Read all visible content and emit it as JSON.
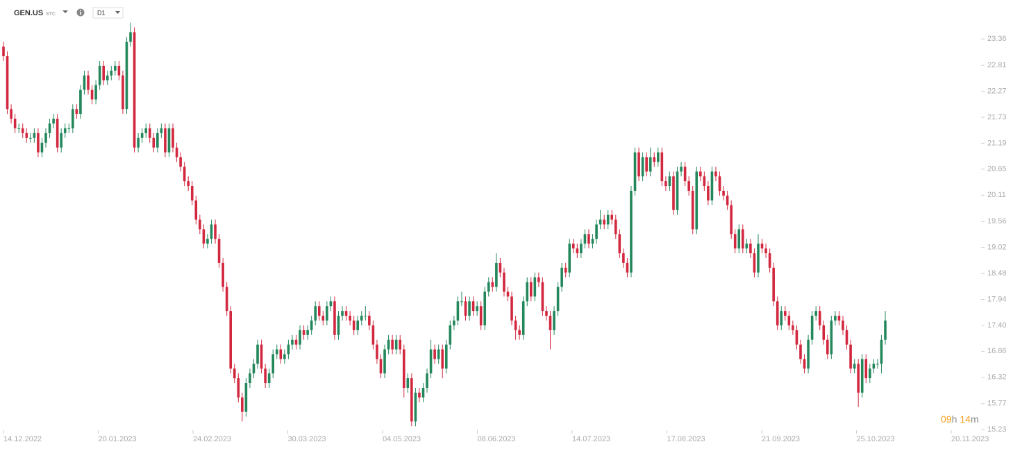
{
  "header": {
    "symbol": "GEN.US",
    "symbol_type": "STC",
    "timeframe": "D1",
    "countdown": [
      "09",
      "h",
      "14",
      "m"
    ]
  },
  "chart_data": {
    "type": "candlestick",
    "up_color": "#23875b",
    "down_color": "#d2283f",
    "ylim": [
      15.19,
      24.17
    ],
    "yticks": [
      23.36,
      22.81,
      22.27,
      21.73,
      21.19,
      20.65,
      20.11,
      19.56,
      19.02,
      18.48,
      17.94,
      {
        "value": 17.4,
        "label": "17.40"
      },
      16.86,
      16.32,
      15.77,
      15.23
    ],
    "xtick_labels": [
      "14.12.2022",
      "20.01.2023",
      "24.02.2023",
      "30.03.2023",
      "04.05.2023",
      "08.06.2023",
      "14.07.2023",
      "17.08.2023",
      "21.09.2023",
      "25.10.2023",
      "20.11.2023"
    ],
    "open": [
      23.2,
      23.0,
      21.9,
      21.7,
      21.5,
      21.5,
      21.4,
      21.3,
      21.3,
      21.4,
      21.0,
      21.2,
      21.4,
      21.6,
      21.7,
      21.1,
      21.4,
      21.5,
      21.5,
      21.9,
      21.8,
      22.3,
      22.6,
      22.3,
      22.1,
      22.4,
      22.8,
      22.5,
      22.6,
      22.7,
      22.8,
      22.6,
      21.9,
      23.3,
      23.5,
      21.1,
      21.3,
      21.4,
      21.5,
      21.3,
      21.1,
      21.4,
      21.5,
      21.0,
      21.5,
      21.1,
      20.9,
      20.7,
      20.4,
      20.3,
      20.0,
      19.6,
      19.4,
      19.1,
      19.2,
      19.5,
      19.2,
      18.7,
      18.2,
      17.7,
      16.5,
      16.3,
      15.9,
      15.6,
      16.2,
      16.4,
      16.6,
      17.0,
      16.5,
      16.2,
      16.4,
      16.8,
      16.9,
      16.7,
      16.8,
      17.0,
      17.1,
      17.0,
      17.3,
      17.2,
      17.3,
      17.5,
      17.8,
      17.6,
      17.5,
      17.8,
      17.9,
      17.2,
      17.6,
      17.7,
      17.6,
      17.5,
      17.3,
      17.5,
      17.6,
      17.6,
      17.4,
      17.0,
      16.7,
      16.4,
      16.9,
      17.1,
      16.9,
      17.1,
      16.9,
      16.1,
      16.3,
      15.4,
      16.0,
      15.9,
      16.1,
      16.4,
      16.9,
      16.7,
      16.9,
      16.5,
      17.0,
      17.4,
      17.5,
      17.9,
      17.9,
      17.6,
      17.9,
      17.7,
      17.8,
      17.4,
      18.1,
      18.3,
      18.2,
      18.7,
      18.5,
      18.1,
      18.0,
      17.5,
      17.3,
      17.2,
      17.9,
      18.3,
      18.0,
      18.4,
      18.3,
      17.7,
      17.6,
      17.3,
      17.7,
      18.2,
      18.6,
      18.5,
      19.1,
      19.0,
      18.9,
      19.1,
      19.3,
      19.1,
      19.2,
      19.5,
      19.6,
      19.5,
      19.7,
      19.6,
      19.3,
      18.9,
      18.7,
      18.5,
      20.2,
      21.0,
      20.5,
      20.9,
      20.6,
      20.9,
      20.8,
      21.0,
      20.4,
      20.3,
      20.5,
      19.8,
      20.6,
      20.7,
      20.4,
      20.2,
      19.4,
      20.6,
      20.5,
      20.3,
      20.0,
      20.6,
      20.5,
      20.2,
      20.1,
      19.9,
      19.3,
      19.0,
      19.4,
      19.0,
      19.1,
      18.9,
      18.5,
      19.1,
      19.0,
      18.9,
      18.6,
      17.9,
      17.4,
      17.7,
      17.6,
      17.4,
      17.3,
      17.0,
      16.7,
      16.5,
      17.1,
      17.6,
      17.7,
      17.4,
      17.1,
      16.8,
      17.5,
      17.6,
      17.5,
      17.3,
      17.0,
      16.5,
      16.6,
      16.0,
      16.7,
      16.3,
      16.5,
      16.6,
      16.6,
      17.1
    ],
    "high": [
      23.3,
      23.1,
      22.0,
      21.8,
      21.6,
      21.6,
      21.5,
      21.4,
      21.5,
      21.5,
      21.3,
      21.5,
      21.7,
      21.8,
      21.8,
      21.5,
      21.6,
      21.6,
      22.0,
      22.0,
      22.4,
      22.7,
      22.7,
      22.4,
      22.5,
      22.9,
      22.9,
      22.7,
      22.8,
      22.9,
      22.9,
      22.7,
      23.4,
      23.7,
      23.6,
      21.4,
      21.5,
      21.6,
      21.6,
      21.4,
      21.5,
      21.6,
      21.6,
      21.6,
      21.6,
      21.2,
      21.0,
      20.8,
      20.5,
      20.4,
      20.1,
      19.7,
      19.5,
      19.3,
      19.6,
      19.6,
      19.3,
      18.8,
      18.3,
      17.8,
      16.6,
      16.4,
      16.0,
      16.3,
      16.5,
      16.7,
      17.1,
      17.1,
      16.6,
      16.5,
      16.9,
      17.0,
      17.0,
      16.9,
      17.1,
      17.2,
      17.2,
      17.4,
      17.4,
      17.4,
      17.6,
      17.9,
      17.9,
      17.7,
      17.9,
      18.0,
      18.0,
      17.7,
      17.8,
      17.8,
      17.7,
      17.6,
      17.6,
      17.7,
      17.8,
      17.7,
      17.5,
      17.1,
      16.8,
      17.0,
      17.2,
      17.2,
      17.2,
      17.2,
      17.0,
      16.4,
      16.4,
      16.1,
      16.1,
      16.2,
      16.5,
      17.1,
      17.0,
      17.0,
      17.0,
      17.1,
      17.5,
      17.6,
      18.0,
      18.1,
      18.0,
      18.0,
      18.0,
      17.9,
      17.9,
      18.2,
      18.4,
      18.4,
      18.9,
      18.8,
      18.6,
      18.2,
      18.1,
      17.6,
      17.4,
      18.0,
      18.4,
      18.4,
      18.5,
      18.5,
      18.4,
      17.8,
      17.7,
      17.8,
      18.3,
      18.7,
      18.7,
      19.2,
      19.2,
      19.1,
      19.2,
      19.4,
      19.4,
      19.3,
      19.6,
      19.8,
      19.7,
      19.8,
      19.8,
      19.7,
      19.4,
      19.0,
      18.8,
      20.3,
      21.1,
      21.1,
      21.0,
      21.0,
      21.1,
      21.0,
      21.1,
      21.1,
      20.5,
      20.6,
      20.6,
      20.7,
      20.8,
      20.8,
      20.5,
      20.3,
      20.7,
      20.7,
      20.6,
      20.4,
      20.7,
      20.7,
      20.6,
      20.3,
      20.2,
      20.0,
      19.4,
      19.5,
      19.5,
      19.2,
      19.2,
      19.0,
      19.3,
      19.2,
      19.1,
      19.0,
      18.7,
      18.0,
      17.8,
      17.8,
      17.7,
      17.5,
      17.4,
      17.1,
      16.8,
      17.2,
      17.7,
      17.8,
      17.8,
      17.5,
      17.2,
      17.6,
      17.7,
      17.7,
      17.6,
      17.4,
      17.1,
      16.7,
      16.7,
      16.8,
      16.8,
      16.6,
      16.7,
      16.7,
      17.2,
      17.7
    ],
    "low": [
      22.9,
      21.8,
      21.6,
      21.4,
      21.4,
      21.3,
      21.2,
      21.2,
      21.2,
      20.9,
      20.9,
      21.1,
      21.3,
      21.5,
      21.0,
      21.0,
      21.3,
      21.4,
      21.4,
      21.7,
      21.7,
      22.2,
      22.2,
      22.0,
      22.0,
      22.3,
      22.4,
      22.4,
      22.5,
      22.6,
      22.5,
      21.8,
      21.8,
      23.2,
      21.0,
      21.0,
      21.2,
      21.3,
      21.2,
      21.0,
      21.0,
      21.3,
      20.9,
      20.9,
      21.0,
      20.8,
      20.6,
      20.3,
      20.2,
      19.9,
      19.5,
      19.3,
      19.0,
      19.0,
      19.1,
      19.1,
      18.6,
      18.1,
      17.6,
      16.4,
      16.2,
      15.8,
      15.4,
      15.5,
      16.1,
      16.3,
      16.5,
      16.4,
      16.1,
      16.1,
      16.3,
      16.7,
      16.6,
      16.6,
      16.7,
      16.9,
      16.9,
      16.9,
      17.1,
      17.1,
      17.2,
      17.4,
      17.5,
      17.4,
      17.4,
      17.7,
      17.1,
      17.1,
      17.5,
      17.5,
      17.4,
      17.2,
      17.2,
      17.4,
      17.5,
      17.3,
      16.9,
      16.6,
      16.3,
      16.3,
      16.8,
      16.8,
      16.8,
      16.8,
      15.9,
      16.0,
      15.3,
      15.3,
      15.8,
      15.8,
      16.0,
      16.3,
      16.6,
      16.6,
      16.3,
      16.4,
      16.9,
      17.3,
      17.4,
      17.8,
      17.5,
      17.5,
      17.6,
      17.6,
      17.3,
      17.3,
      18.0,
      18.1,
      18.1,
      18.4,
      18.0,
      17.9,
      17.4,
      17.1,
      17.1,
      17.1,
      17.8,
      17.9,
      17.9,
      18.2,
      17.6,
      17.5,
      16.9,
      17.2,
      17.6,
      18.1,
      18.4,
      18.4,
      18.9,
      18.8,
      18.8,
      19.0,
      19.0,
      19.0,
      19.1,
      19.4,
      19.4,
      19.4,
      19.5,
      19.2,
      18.8,
      18.6,
      18.4,
      18.4,
      20.1,
      20.4,
      20.4,
      20.5,
      20.5,
      20.7,
      20.7,
      20.3,
      20.2,
      20.2,
      19.7,
      19.7,
      20.5,
      20.3,
      20.1,
      19.3,
      19.3,
      20.4,
      20.2,
      19.9,
      19.9,
      20.4,
      20.1,
      20.0,
      19.8,
      19.2,
      18.9,
      18.9,
      18.9,
      18.9,
      18.8,
      18.4,
      18.4,
      18.9,
      18.8,
      18.5,
      17.8,
      17.3,
      17.3,
      17.5,
      17.3,
      17.2,
      16.9,
      16.6,
      16.4,
      16.4,
      17.0,
      17.5,
      17.3,
      17.0,
      16.7,
      16.7,
      17.4,
      17.4,
      17.2,
      16.9,
      16.4,
      16.4,
      15.7,
      15.9,
      16.2,
      16.2,
      16.4,
      16.5,
      16.4,
      17.0
    ],
    "close": [
      23.0,
      21.9,
      21.7,
      21.5,
      21.5,
      21.4,
      21.3,
      21.3,
      21.4,
      21.0,
      21.2,
      21.4,
      21.6,
      21.7,
      21.1,
      21.4,
      21.5,
      21.5,
      21.9,
      21.8,
      22.3,
      22.6,
      22.3,
      22.1,
      22.4,
      22.8,
      22.5,
      22.6,
      22.7,
      22.8,
      22.6,
      21.9,
      23.3,
      23.5,
      21.1,
      21.3,
      21.4,
      21.5,
      21.3,
      21.1,
      21.4,
      21.5,
      21.0,
      21.5,
      21.1,
      20.9,
      20.7,
      20.4,
      20.3,
      20.0,
      19.6,
      19.4,
      19.1,
      19.2,
      19.5,
      19.2,
      18.7,
      18.2,
      17.7,
      16.5,
      16.3,
      15.9,
      15.6,
      16.2,
      16.4,
      16.6,
      17.0,
      16.5,
      16.2,
      16.4,
      16.8,
      16.9,
      16.7,
      16.8,
      17.0,
      17.1,
      17.0,
      17.3,
      17.2,
      17.3,
      17.5,
      17.8,
      17.6,
      17.5,
      17.8,
      17.9,
      17.2,
      17.6,
      17.7,
      17.6,
      17.5,
      17.3,
      17.5,
      17.6,
      17.6,
      17.4,
      17.0,
      16.7,
      16.4,
      16.9,
      17.1,
      16.9,
      17.1,
      16.9,
      16.1,
      16.3,
      15.4,
      16.0,
      15.9,
      16.1,
      16.4,
      16.9,
      16.7,
      16.9,
      16.5,
      17.0,
      17.4,
      17.5,
      17.9,
      17.9,
      17.6,
      17.9,
      17.7,
      17.8,
      17.4,
      18.1,
      18.3,
      18.2,
      18.7,
      18.5,
      18.1,
      18.0,
      17.5,
      17.3,
      17.2,
      17.9,
      18.3,
      18.0,
      18.4,
      18.3,
      17.7,
      17.6,
      17.3,
      17.7,
      18.2,
      18.6,
      18.5,
      19.1,
      19.0,
      18.9,
      19.1,
      19.3,
      19.1,
      19.2,
      19.5,
      19.6,
      19.5,
      19.7,
      19.6,
      19.3,
      18.9,
      18.7,
      18.5,
      20.2,
      21.0,
      20.5,
      20.9,
      20.6,
      20.9,
      20.8,
      21.0,
      20.4,
      20.3,
      20.5,
      19.8,
      20.6,
      20.7,
      20.4,
      20.2,
      19.4,
      20.6,
      20.5,
      20.3,
      20.0,
      20.6,
      20.5,
      20.2,
      20.1,
      19.9,
      19.3,
      19.0,
      19.4,
      19.0,
      19.1,
      18.9,
      18.5,
      19.1,
      19.0,
      18.9,
      18.6,
      17.9,
      17.4,
      17.7,
      17.6,
      17.4,
      17.3,
      17.0,
      16.7,
      16.5,
      17.1,
      17.6,
      17.7,
      17.4,
      17.1,
      16.8,
      17.5,
      17.6,
      17.5,
      17.3,
      17.0,
      16.5,
      16.6,
      16.0,
      16.7,
      16.3,
      16.5,
      16.6,
      16.6,
      17.1,
      17.5
    ]
  }
}
